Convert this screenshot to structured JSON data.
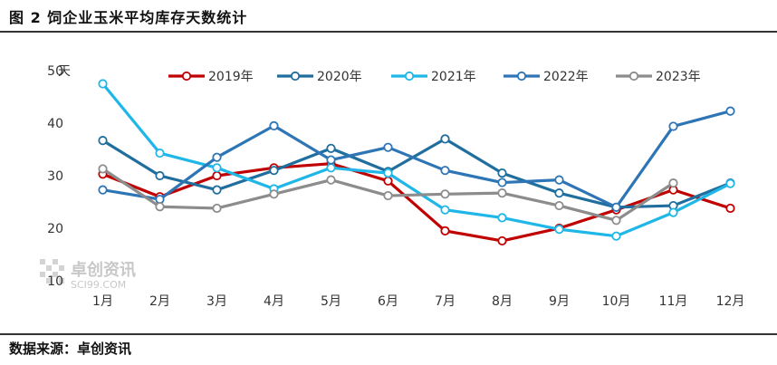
{
  "figure": {
    "title": "图 2  饲企业玉米平均库存天数统计",
    "source": "数据来源：卓创资讯"
  },
  "watermark": {
    "name": "卓创资讯",
    "url": "SCI99.COM"
  },
  "chart_data": {
    "type": "line",
    "ylabel": "天",
    "ylim": [
      10,
      50
    ],
    "yticks": [
      "10",
      "20",
      "30",
      "40",
      "50"
    ],
    "categories": [
      "1月",
      "2月",
      "3月",
      "4月",
      "5月",
      "6月",
      "7月",
      "8月",
      "9月",
      "10月",
      "11月",
      "12月"
    ],
    "legend_position": "top",
    "grid": false,
    "series": [
      {
        "name": "2019年",
        "color": "#c00000",
        "values": [
          30.3,
          26.0,
          30.0,
          31.5,
          32.3,
          29.0,
          19.5,
          17.6,
          20.0,
          23.5,
          27.3,
          23.8
        ]
      },
      {
        "name": "2020年",
        "color": "#1f6e9e",
        "values": [
          36.7,
          30.0,
          27.3,
          31.0,
          35.2,
          30.8,
          37.0,
          30.5,
          26.7,
          24.0,
          24.3,
          28.6
        ]
      },
      {
        "name": "2021年",
        "color": "#1fb6e8",
        "values": [
          47.5,
          34.3,
          31.5,
          27.5,
          31.5,
          30.5,
          23.5,
          22.0,
          19.8,
          18.5,
          23.0,
          28.5
        ]
      },
      {
        "name": "2022年",
        "color": "#2e75b6",
        "values": [
          27.3,
          25.5,
          33.5,
          39.5,
          33.0,
          35.4,
          31.0,
          28.7,
          29.2,
          24.0,
          39.4,
          42.3
        ]
      },
      {
        "name": "2023年",
        "color": "#8c8c8c",
        "values": [
          31.3,
          24.1,
          23.8,
          26.5,
          29.2,
          26.2,
          26.5,
          26.7,
          24.3,
          21.5,
          28.6,
          null
        ]
      }
    ]
  }
}
